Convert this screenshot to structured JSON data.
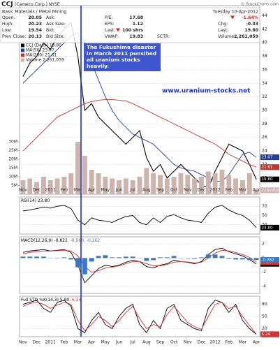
{
  "header": {
    "symbol": "CCJ",
    "company": "(Cameco Corp.) NYSE",
    "credit": "© StockCharts.com",
    "sector": "Basic Materials / Metal Mining",
    "date": "Tuesday 10-Apr-2012",
    "quote": [
      {
        "label": "Open:",
        "value": "20.05"
      },
      {
        "label": "High:",
        "value": "20.23"
      },
      {
        "label": "Low:",
        "value": "19.54"
      },
      {
        "label": "Prev Close:",
        "value": "20.13"
      }
    ],
    "book": [
      "Ask:",
      "Ask Size:",
      "Bid:",
      "Bid Size:"
    ],
    "stats": [
      {
        "label": "P/E:",
        "value": "17.68"
      },
      {
        "label": "EPS:",
        "value": "1.12"
      },
      {
        "label": "Last:",
        "value": "100 shrs"
      },
      {
        "label": "VWAP:",
        "value": "19.83"
      }
    ],
    "sctr": "SCTR:",
    "change_pct": "-1.64%",
    "summary": [
      {
        "label": "Chg:",
        "value": "-0.33"
      },
      {
        "label": "Last:",
        "value": "19.80"
      },
      {
        "label": "Volume:",
        "value": "2,261,059"
      }
    ]
  },
  "annotations": {
    "note": [
      "The Fukushima disaster",
      "in March 2011 punsihed",
      "all uranium stocks",
      "heavily."
    ],
    "website": "www.uranium-stocks.net"
  },
  "chart_data": [
    {
      "type": "line",
      "legend": "stacked",
      "categories": [
        "Nov",
        null,
        "Dec",
        null,
        "2011",
        null,
        "Feb",
        null,
        "Mar",
        null,
        "Apr",
        null,
        "May",
        null,
        "Jun",
        null,
        "Jul",
        null,
        "Aug",
        null,
        "Sep",
        null,
        "Oct",
        null,
        "Nov",
        null,
        "Dec",
        null,
        "2012",
        null,
        "Feb",
        null,
        "Mar",
        null,
        "Apr"
      ],
      "ylim": [
        17.6,
        45.5
      ],
      "yticks": [
        18,
        20,
        22,
        24,
        26,
        28,
        30,
        32,
        34,
        36,
        38,
        40,
        42,
        44
      ],
      "y2lim": [
        0,
        40000000
      ],
      "y2ticks": [
        {
          "value": 5000000,
          "label": "5M"
        },
        {
          "value": 10000000,
          "label": "10M"
        },
        {
          "value": 15000000,
          "label": "15M"
        },
        {
          "value": 20000000,
          "label": "20M"
        },
        {
          "value": 25000000,
          "label": "25M"
        },
        {
          "value": 30000000,
          "label": "30M"
        }
      ],
      "grid": true,
      "series": [
        {
          "name": "CCJ (Daily) 19.80",
          "color": "#000000",
          "type": "line",
          "values": [
            35,
            37,
            38,
            40,
            39,
            41,
            42,
            43,
            38,
            30,
            31,
            29,
            28,
            27,
            26,
            25,
            26,
            27,
            23,
            21,
            22,
            20,
            21,
            22,
            21,
            20,
            19,
            18.5,
            21,
            23,
            25,
            24.5,
            24,
            22,
            19.8
          ],
          "value_labels": [
            null,
            null,
            null,
            null,
            null,
            null,
            null,
            null,
            null,
            null,
            null,
            null,
            null,
            null,
            null,
            null,
            null,
            null,
            null,
            null,
            null,
            null,
            null,
            null,
            null,
            null,
            null,
            null,
            null,
            null,
            null,
            null,
            null,
            null,
            "19.80"
          ]
        },
        {
          "name": "MA(50) 23.07",
          "color": "#1f3f9f",
          "type": "line",
          "values": [
            34,
            35,
            36,
            37,
            38,
            39,
            40,
            41,
            41.5,
            40,
            37,
            34.5,
            32,
            30,
            28.5,
            27.5,
            26.5,
            26,
            25.5,
            25,
            24,
            23,
            22,
            21.5,
            21.2,
            21,
            20.5,
            20,
            19.5,
            19.5,
            20.5,
            22,
            23.5,
            23.8,
            23.07
          ]
        },
        {
          "name": "MA(200) 21.61",
          "color": "#c0392b",
          "type": "line",
          "values": [
            24,
            25,
            26,
            27,
            28,
            29,
            29.5,
            30,
            30.5,
            31,
            31.3,
            31.5,
            31.6,
            31.6,
            31.5,
            31.4,
            31,
            30.5,
            30,
            29.5,
            29,
            28.5,
            28,
            27.5,
            27,
            26.5,
            26,
            25.5,
            25,
            24.3,
            23.5,
            23,
            22.5,
            22,
            21.61
          ]
        },
        {
          "name": "Volume 2,261,059",
          "color": "#cdb3ad",
          "type": "bar",
          "axis": "y2",
          "values": [
            8000000,
            9000000,
            7000000,
            10000000,
            8000000,
            9000000,
            10000000,
            12000000,
            30000000,
            22000000,
            14000000,
            12000000,
            10000000,
            9000000,
            8000000,
            9000000,
            8000000,
            10000000,
            15000000,
            12000000,
            11000000,
            9000000,
            10000000,
            12000000,
            11000000,
            9000000,
            10000000,
            13000000,
            12000000,
            14000000,
            11000000,
            9000000,
            8000000,
            12000000,
            2261059
          ]
        }
      ]
    },
    {
      "type": "line",
      "legend": "inline",
      "ylim": [
        10,
        90
      ],
      "yticks": [
        30,
        50,
        70
      ],
      "grid": true,
      "series": [
        {
          "name": "RSI(14) 23.80",
          "color": "#000000",
          "type": "line",
          "values": [
            60,
            62,
            65,
            68,
            66,
            70,
            72,
            65,
            40,
            30,
            45,
            40,
            38,
            35,
            42,
            48,
            50,
            35,
            30,
            45,
            35,
            48,
            52,
            45,
            40,
            38,
            35,
            55,
            68,
            72,
            62,
            55,
            50,
            40,
            23.8
          ],
          "value_labels": [
            null,
            null,
            null,
            null,
            null,
            null,
            null,
            null,
            null,
            null,
            null,
            null,
            null,
            null,
            null,
            null,
            null,
            null,
            null,
            null,
            null,
            null,
            null,
            null,
            null,
            null,
            null,
            null,
            null,
            null,
            null,
            null,
            null,
            null,
            "23.80"
          ]
        }
      ]
    },
    {
      "type": "line",
      "legend": "inline",
      "ylim": [
        -5,
        3
      ],
      "yticks": [
        -4,
        -2,
        0,
        2
      ],
      "grid": true,
      "series": [
        {
          "name": "MACD(12,26,9) -0.822",
          "color": "#000000",
          "type": "line",
          "values": [
            0.8,
            1.0,
            1.1,
            1.2,
            1.0,
            1.1,
            1.2,
            0.8,
            -1.0,
            -3.5,
            -2.5,
            -1.5,
            -1.0,
            -1.2,
            -1.0,
            -0.6,
            -0.3,
            -0.5,
            -1.2,
            -1.4,
            -1.0,
            -0.8,
            -0.3,
            -0.5,
            -0.6,
            -0.8,
            -0.5,
            0.5,
            1.2,
            1.4,
            0.9,
            0.6,
            0.3,
            -0.2,
            -0.822
          ]
        },
        {
          "name": ", -0.560",
          "color": "#d33333",
          "type": "line",
          "values": [
            0.6,
            0.8,
            0.9,
            1.0,
            1.0,
            1.05,
            1.1,
            1.0,
            0.3,
            -1.2,
            -2.0,
            -1.8,
            -1.4,
            -1.3,
            -1.1,
            -0.8,
            -0.5,
            -0.5,
            -0.8,
            -1.1,
            -1.1,
            -0.9,
            -0.6,
            -0.5,
            -0.55,
            -0.7,
            -0.6,
            0.0,
            0.7,
            1.1,
            1.0,
            0.8,
            0.5,
            0.1,
            -0.56
          ]
        },
        {
          "name": ", -0.262",
          "color": "#3a78c3",
          "type": "bar",
          "values": [
            0.2,
            0.2,
            0.2,
            0.2,
            0,
            0.05,
            0.1,
            -0.2,
            -1.3,
            -2.3,
            -0.5,
            0.3,
            0.4,
            0.1,
            0.1,
            0.2,
            0.2,
            0,
            -0.4,
            -0.3,
            0.1,
            0.1,
            0.3,
            0,
            -0.05,
            -0.1,
            0.1,
            0.5,
            0.5,
            0.3,
            -0.1,
            -0.2,
            -0.2,
            -0.3,
            -0.262
          ]
        }
      ]
    },
    {
      "type": "line",
      "legend": "inline",
      "ylim": [
        0,
        100
      ],
      "yticks": [
        20,
        50,
        80
      ],
      "grid": true,
      "series": [
        {
          "name": "Full STO %K(14,3) 5.90",
          "color": "#000000",
          "type": "line",
          "values": [
            80,
            85,
            90,
            70,
            60,
            85,
            90,
            75,
            20,
            10,
            40,
            60,
            30,
            20,
            50,
            70,
            80,
            30,
            10,
            40,
            20,
            70,
            80,
            40,
            30,
            20,
            15,
            70,
            90,
            85,
            60,
            80,
            40,
            20,
            5.9
          ],
          "value_labels": [
            null,
            null,
            null,
            null,
            null,
            null,
            null,
            null,
            null,
            null,
            null,
            null,
            null,
            null,
            null,
            null,
            null,
            null,
            null,
            null,
            null,
            null,
            null,
            null,
            null,
            null,
            null,
            null,
            null,
            null,
            null,
            null,
            null,
            null,
            "5.90"
          ]
        },
        {
          "name": ", 6.24",
          "color": "#d33333",
          "type": "line",
          "values": [
            75,
            82,
            85,
            80,
            70,
            78,
            85,
            80,
            40,
            15,
            30,
            50,
            40,
            25,
            40,
            60,
            75,
            45,
            20,
            30,
            25,
            55,
            75,
            55,
            35,
            25,
            18,
            50,
            80,
            85,
            70,
            75,
            50,
            28,
            6.24
          ]
        }
      ]
    }
  ]
}
